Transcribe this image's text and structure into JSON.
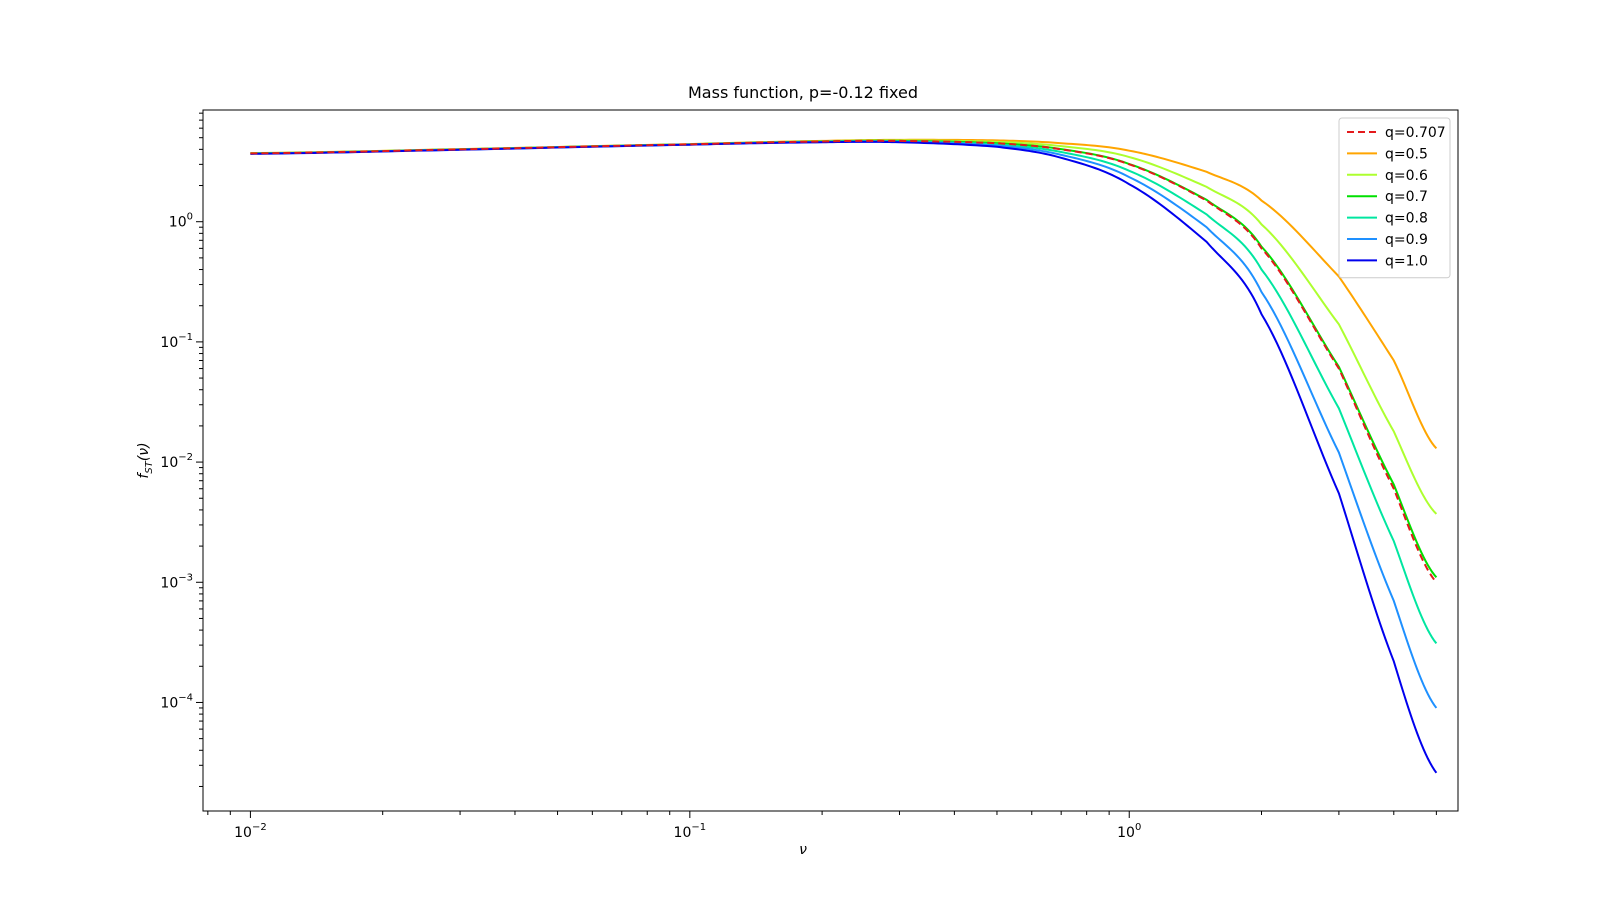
{
  "chart_data": {
    "type": "line",
    "title": "Mass function, p=-0.12 fixed",
    "xlabel": "ν",
    "ylabel": "f_ST(ν)",
    "xscale": "log",
    "yscale": "log",
    "xlim": [
      0.0078,
      5.6
    ],
    "ylim": [
      1.25e-05,
      8.5
    ],
    "x_ticks": [
      "0.01",
      "0.1",
      "1"
    ],
    "y_ticks": [
      "0.0001",
      "0.001",
      "0.01",
      "0.1",
      "1"
    ],
    "legend_position": "top-right",
    "grid": false,
    "x": [
      0.01,
      0.03,
      0.1,
      0.2,
      0.3,
      0.5,
      0.7,
      1.0,
      1.5,
      2.0,
      3.0,
      4.0,
      5.0
    ],
    "series": [
      {
        "name": "q=0.707",
        "color": "#e41a1c",
        "dashed": true,
        "values": [
          3.7,
          4.0,
          4.4,
          4.65,
          4.7,
          4.5,
          4.0,
          3.0,
          1.5,
          0.6,
          0.06,
          0.006,
          0.001
        ]
      },
      {
        "name": "q=0.5",
        "color": "#ffa500",
        "dashed": false,
        "values": [
          3.72,
          4.02,
          4.42,
          4.7,
          4.8,
          4.75,
          4.5,
          3.9,
          2.6,
          1.5,
          0.35,
          0.07,
          0.013
        ]
      },
      {
        "name": "q=0.6",
        "color": "#adff2f",
        "dashed": false,
        "values": [
          3.71,
          4.01,
          4.41,
          4.67,
          4.75,
          4.62,
          4.25,
          3.45,
          1.95,
          0.95,
          0.14,
          0.018,
          0.0037
        ]
      },
      {
        "name": "q=0.7",
        "color": "#00e000",
        "dashed": false,
        "values": [
          3.7,
          4.0,
          4.4,
          4.65,
          4.7,
          4.5,
          4.02,
          3.02,
          1.52,
          0.62,
          0.062,
          0.0065,
          0.0011
        ]
      },
      {
        "name": "q=0.8",
        "color": "#00e6a0",
        "dashed": false,
        "values": [
          3.69,
          3.99,
          4.39,
          4.62,
          4.66,
          4.4,
          3.8,
          2.65,
          1.15,
          0.4,
          0.028,
          0.0022,
          0.00031
        ]
      },
      {
        "name": "q=0.9",
        "color": "#1e90ff",
        "dashed": false,
        "values": [
          3.68,
          3.98,
          4.38,
          4.6,
          4.62,
          4.3,
          3.6,
          2.35,
          0.9,
          0.26,
          0.012,
          0.0007,
          9e-05
        ]
      },
      {
        "name": "q=1.0",
        "color": "#0000ee",
        "dashed": false,
        "values": [
          3.67,
          3.97,
          4.37,
          4.58,
          4.58,
          4.2,
          3.4,
          2.05,
          0.68,
          0.17,
          0.0055,
          0.00022,
          2.6e-05
        ]
      }
    ]
  }
}
